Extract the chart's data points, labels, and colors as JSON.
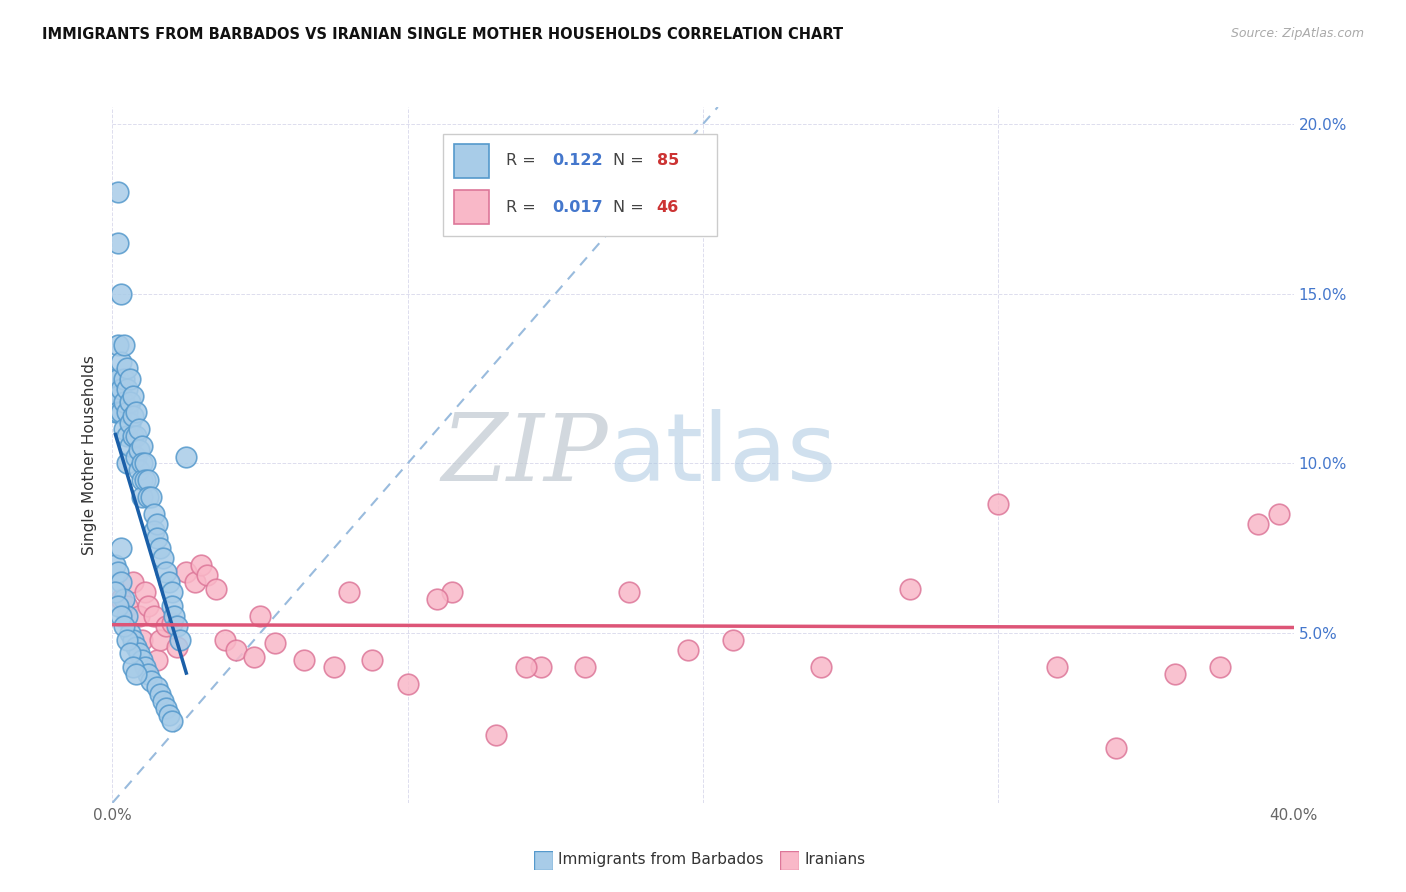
{
  "title": "IMMIGRANTS FROM BARBADOS VS IRANIAN SINGLE MOTHER HOUSEHOLDS CORRELATION CHART",
  "source": "Source: ZipAtlas.com",
  "ylabel": "Single Mother Households",
  "xlim": [
    0.0,
    0.4
  ],
  "ylim": [
    0.0,
    0.205
  ],
  "xticks": [
    0.0,
    0.1,
    0.2,
    0.3,
    0.4
  ],
  "xticklabels": [
    "0.0%",
    "",
    "",
    "",
    "40.0%"
  ],
  "yticks": [
    0.05,
    0.1,
    0.15,
    0.2
  ],
  "yticklabels_right": [
    "5.0%",
    "10.0%",
    "15.0%",
    "20.0%"
  ],
  "blue_fill": "#a8cce8",
  "blue_edge": "#5599cc",
  "pink_fill": "#f9b8c8",
  "pink_edge": "#dd7799",
  "trend_blue": "#1a5fa8",
  "trend_pink": "#dd5577",
  "diag_color": "#99bbdd",
  "r_color": "#4477cc",
  "n_color": "#cc3333",
  "grid_color": "#ddddee",
  "blue_x": [
    0.001,
    0.001,
    0.001,
    0.001,
    0.002,
    0.002,
    0.002,
    0.002,
    0.002,
    0.002,
    0.002,
    0.003,
    0.003,
    0.003,
    0.003,
    0.003,
    0.003,
    0.004,
    0.004,
    0.004,
    0.004,
    0.004,
    0.005,
    0.005,
    0.005,
    0.005,
    0.005,
    0.005,
    0.006,
    0.006,
    0.006,
    0.006,
    0.006,
    0.007,
    0.007,
    0.007,
    0.007,
    0.008,
    0.008,
    0.008,
    0.008,
    0.009,
    0.009,
    0.009,
    0.009,
    0.01,
    0.01,
    0.01,
    0.01,
    0.01,
    0.011,
    0.011,
    0.011,
    0.012,
    0.012,
    0.012,
    0.013,
    0.013,
    0.014,
    0.014,
    0.015,
    0.015,
    0.015,
    0.016,
    0.016,
    0.017,
    0.017,
    0.018,
    0.018,
    0.019,
    0.019,
    0.02,
    0.02,
    0.02,
    0.021,
    0.022,
    0.001,
    0.002,
    0.003,
    0.004,
    0.005,
    0.006,
    0.007,
    0.008,
    0.023,
    0.025
  ],
  "blue_y": [
    0.125,
    0.12,
    0.115,
    0.07,
    0.18,
    0.165,
    0.135,
    0.125,
    0.12,
    0.115,
    0.068,
    0.15,
    0.13,
    0.122,
    0.115,
    0.075,
    0.065,
    0.135,
    0.125,
    0.118,
    0.11,
    0.06,
    0.128,
    0.122,
    0.115,
    0.108,
    0.1,
    0.055,
    0.125,
    0.118,
    0.112,
    0.105,
    0.05,
    0.12,
    0.114,
    0.108,
    0.048,
    0.115,
    0.108,
    0.102,
    0.046,
    0.11,
    0.104,
    0.098,
    0.044,
    0.105,
    0.1,
    0.095,
    0.09,
    0.042,
    0.1,
    0.095,
    0.04,
    0.095,
    0.09,
    0.038,
    0.09,
    0.036,
    0.085,
    0.08,
    0.082,
    0.078,
    0.034,
    0.075,
    0.032,
    0.072,
    0.03,
    0.068,
    0.028,
    0.065,
    0.026,
    0.062,
    0.058,
    0.024,
    0.055,
    0.052,
    0.062,
    0.058,
    0.055,
    0.052,
    0.048,
    0.044,
    0.04,
    0.038,
    0.048,
    0.102
  ],
  "pink_x": [
    0.003,
    0.005,
    0.007,
    0.009,
    0.01,
    0.011,
    0.012,
    0.014,
    0.015,
    0.016,
    0.018,
    0.02,
    0.022,
    0.025,
    0.028,
    0.03,
    0.032,
    0.035,
    0.038,
    0.042,
    0.048,
    0.055,
    0.065,
    0.075,
    0.088,
    0.1,
    0.115,
    0.13,
    0.145,
    0.16,
    0.175,
    0.195,
    0.21,
    0.24,
    0.27,
    0.3,
    0.32,
    0.34,
    0.36,
    0.375,
    0.388,
    0.395,
    0.05,
    0.08,
    0.11,
    0.14
  ],
  "pink_y": [
    0.06,
    0.058,
    0.065,
    0.055,
    0.048,
    0.062,
    0.058,
    0.055,
    0.042,
    0.048,
    0.052,
    0.053,
    0.046,
    0.068,
    0.065,
    0.07,
    0.067,
    0.063,
    0.048,
    0.045,
    0.043,
    0.047,
    0.042,
    0.04,
    0.042,
    0.035,
    0.062,
    0.02,
    0.04,
    0.04,
    0.062,
    0.045,
    0.048,
    0.04,
    0.063,
    0.088,
    0.04,
    0.016,
    0.038,
    0.04,
    0.082,
    0.085,
    0.055,
    0.062,
    0.06,
    0.04
  ]
}
